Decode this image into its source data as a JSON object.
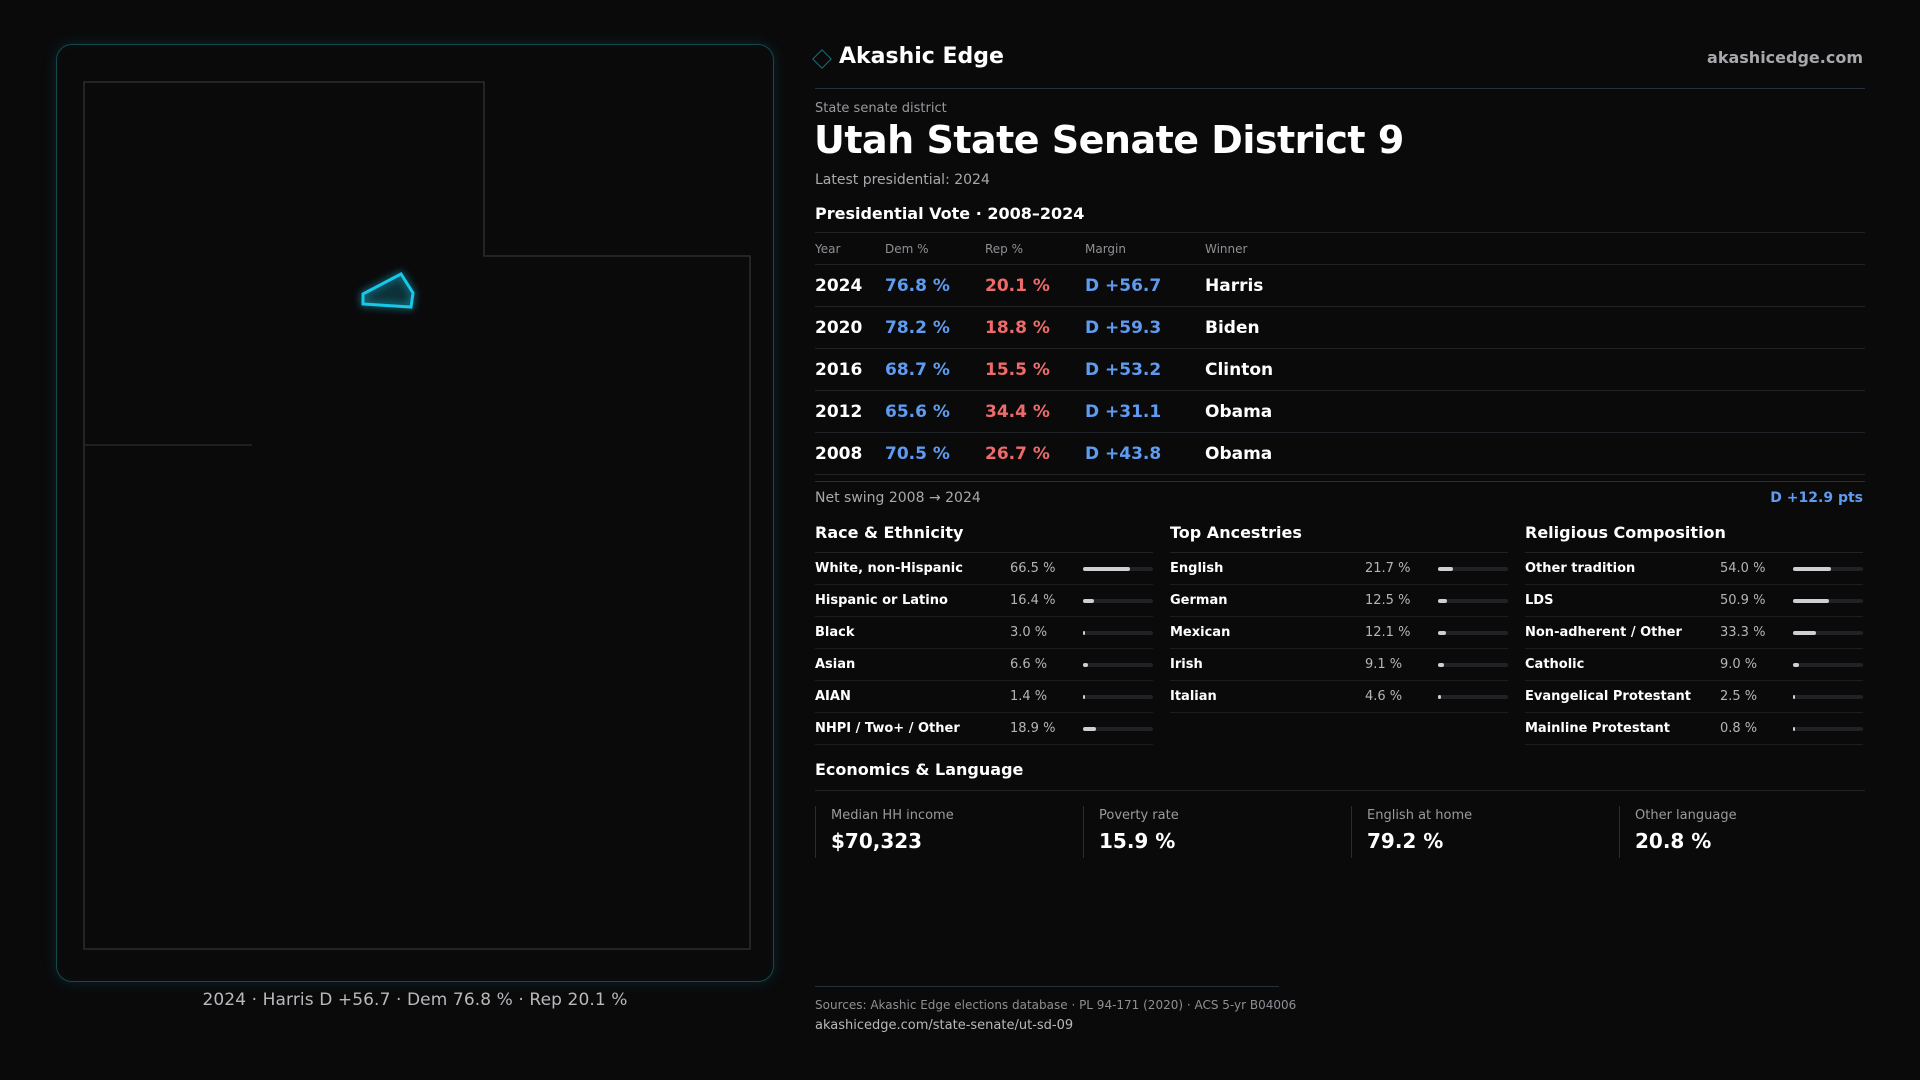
{
  "brand": {
    "name": "Akashic Edge",
    "site": "akashicedge.com",
    "icon": "diamond-icon"
  },
  "header": {
    "kicker": "State senate district",
    "title": "Utah State Senate District 9",
    "latest": "Latest presidential: 2024"
  },
  "map": {
    "caption": "2024 · Harris D +56.7 · Dem 76.8 % · Rep 20.1 %",
    "highlight_color": "#18c8e8",
    "frame_color": "#15494f"
  },
  "presidential": {
    "title": "Presidential Vote · 2008–2024",
    "columns": [
      "Year",
      "Dem %",
      "Rep %",
      "Margin",
      "Winner"
    ],
    "rows": [
      {
        "year": "2024",
        "dem": "76.8 %",
        "rep": "20.1 %",
        "margin": "D +56.7",
        "winner": "Harris"
      },
      {
        "year": "2020",
        "dem": "78.2 %",
        "rep": "18.8 %",
        "margin": "D +59.3",
        "winner": "Biden"
      },
      {
        "year": "2016",
        "dem": "68.7 %",
        "rep": "15.5 %",
        "margin": "D +53.2",
        "winner": "Clinton"
      },
      {
        "year": "2012",
        "dem": "65.6 %",
        "rep": "34.4 %",
        "margin": "D +31.1",
        "winner": "Obama"
      },
      {
        "year": "2008",
        "dem": "70.5 %",
        "rep": "26.7 %",
        "margin": "D +43.8",
        "winner": "Obama"
      }
    ],
    "swing_label": "Net swing 2008 → 2024",
    "swing_value": "D +12.9 pts",
    "colors": {
      "dem": "#5f9cf1",
      "rep": "#ef6b6b"
    }
  },
  "race": {
    "title": "Race & Ethnicity",
    "items": [
      {
        "label": "White, non-Hispanic",
        "pct": "66.5 %",
        "value": 66.5
      },
      {
        "label": "Hispanic or Latino",
        "pct": "16.4 %",
        "value": 16.4
      },
      {
        "label": "Black",
        "pct": "3.0 %",
        "value": 3.0
      },
      {
        "label": "Asian",
        "pct": "6.6 %",
        "value": 6.6
      },
      {
        "label": "AIAN",
        "pct": "1.4 %",
        "value": 1.4
      },
      {
        "label": "NHPI / Two+ / Other",
        "pct": "18.9 %",
        "value": 18.9
      }
    ]
  },
  "ancestry": {
    "title": "Top Ancestries",
    "items": [
      {
        "label": "English",
        "pct": "21.7 %",
        "value": 21.7
      },
      {
        "label": "German",
        "pct": "12.5 %",
        "value": 12.5
      },
      {
        "label": "Mexican",
        "pct": "12.1 %",
        "value": 12.1
      },
      {
        "label": "Irish",
        "pct": "9.1 %",
        "value": 9.1
      },
      {
        "label": "Italian",
        "pct": "4.6 %",
        "value": 4.6
      }
    ]
  },
  "religion": {
    "title": "Religious Composition",
    "items": [
      {
        "label": "Other tradition",
        "pct": "54.0 %",
        "value": 54.0
      },
      {
        "label": "LDS",
        "pct": "50.9 %",
        "value": 50.9
      },
      {
        "label": "Non-adherent / Other",
        "pct": "33.3 %",
        "value": 33.3
      },
      {
        "label": "Catholic",
        "pct": "9.0 %",
        "value": 9.0
      },
      {
        "label": "Evangelical Protestant",
        "pct": "2.5 %",
        "value": 2.5
      },
      {
        "label": "Mainline Protestant",
        "pct": "0.8 %",
        "value": 0.8
      }
    ]
  },
  "economics": {
    "title": "Economics & Language",
    "cards": [
      {
        "label": "Median HH income",
        "value": "$70,323"
      },
      {
        "label": "Poverty rate",
        "value": "15.9 %"
      },
      {
        "label": "English at home",
        "value": "79.2 %"
      },
      {
        "label": "Other language",
        "value": "20.8 %"
      }
    ]
  },
  "footer": {
    "sources": "Sources: Akashic Edge elections database · PL 94-171 (2020) · ACS 5-yr B04006",
    "url": "akashicedge.com/state-senate/ut-sd-09"
  }
}
